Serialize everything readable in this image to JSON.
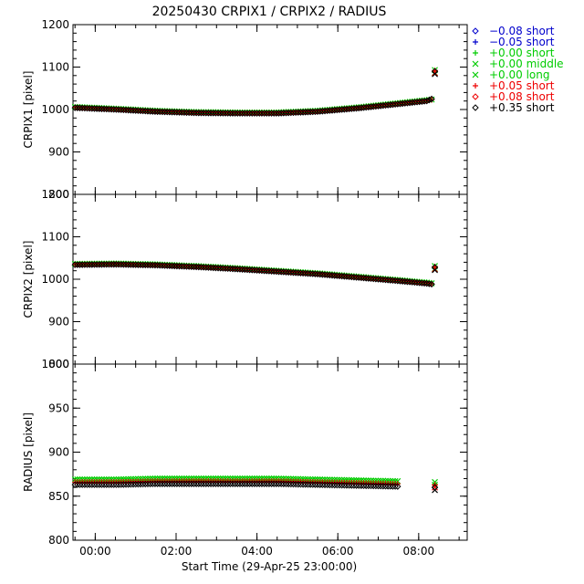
{
  "chart_data": {
    "type": "scatter",
    "title": "20250430 CRPIX1 / CRPIX2 / RADIUS",
    "xlabel": "Start Time (29-Apr-25 23:00:00)",
    "x_unit": "hours after 29-Apr-25 23:00:00",
    "xlim": [
      0.45,
      10.2
    ],
    "x_ticks": [
      1,
      3,
      5,
      7,
      9
    ],
    "x_tick_labels": [
      "00:00",
      "02:00",
      "04:00",
      "06:00",
      "08:00"
    ],
    "legend": {
      "placement": "outside-top-right",
      "entries": [
        {
          "symbol": "diamond",
          "label": "−0.08 short",
          "color": "#0000cc"
        },
        {
          "symbol": "plus",
          "label": "−0.05 short",
          "color": "#0000cc"
        },
        {
          "symbol": "plus",
          "label": "+0.00 short",
          "color": "#00cc00"
        },
        {
          "symbol": "cross",
          "label": "+0.00 middle",
          "color": "#00cc00"
        },
        {
          "symbol": "cross",
          "label": "+0.00 long",
          "color": "#00cc00"
        },
        {
          "symbol": "plus",
          "label": "+0.05 short",
          "color": "#ee0000"
        },
        {
          "symbol": "diamond",
          "label": "+0.08 short",
          "color": "#ee0000"
        },
        {
          "symbol": "diamond",
          "label": "+0.35 short",
          "color": "#000000"
        }
      ]
    },
    "panels": [
      {
        "ylabel": "CRPIX1 [pixel]",
        "ylim": [
          800,
          1200
        ],
        "y_ticks": [
          800,
          900,
          1000,
          1100,
          1200
        ],
        "x": [
          0.5,
          1.5,
          2.5,
          3.5,
          4.5,
          5.5,
          6.5,
          7.5,
          8.5,
          9.2,
          9.35,
          9.4
        ],
        "series": [
          {
            "color": "#00cc00",
            "values": [
              1006,
              1002,
              997,
              994,
              993,
              993,
              997,
              1005,
              1015,
              1022,
              1024,
              1093
            ]
          },
          {
            "color": "#ee0000",
            "values": [
              1005,
              1001,
              996,
              993,
              992,
              992,
              996,
              1004,
              1014,
              1021,
              1023,
              1092
            ]
          },
          {
            "color": "#000000",
            "values": [
              1004,
              1000,
              995,
              992,
              991,
              991,
              995,
              1003,
              1013,
              1020,
              1026,
              1090
            ]
          }
        ]
      },
      {
        "ylabel": "CRPIX2 [pixel]",
        "ylim": [
          800,
          1200
        ],
        "y_ticks": [
          800,
          900,
          1000,
          1100,
          1200
        ],
        "x": [
          0.5,
          1.5,
          2.5,
          3.5,
          4.5,
          5.5,
          6.5,
          7.5,
          8.5,
          9.2,
          9.35,
          9.4
        ],
        "series": [
          {
            "color": "#00cc00",
            "values": [
              1036,
              1037,
              1035,
              1031,
              1026,
              1020,
              1014,
              1006,
              998,
              992,
              990,
              1031
            ]
          },
          {
            "color": "#ee0000",
            "values": [
              1035,
              1036,
              1034,
              1030,
              1025,
              1019,
              1013,
              1005,
              997,
              991,
              989,
              1030
            ]
          },
          {
            "color": "#000000",
            "values": [
              1034,
              1035,
              1033,
              1029,
              1024,
              1018,
              1012,
              1004,
              996,
              990,
              988,
              1028
            ]
          }
        ]
      },
      {
        "ylabel": "RADIUS [pixel]",
        "ylim": [
          800,
          1000
        ],
        "y_ticks": [
          800,
          850,
          900,
          950,
          1000
        ],
        "x": [
          0.5,
          1.5,
          2.5,
          3.5,
          4.5,
          5.5,
          6.5,
          7.5,
          8.5,
          9.4
        ],
        "series": [
          {
            "color": "#00cc00",
            "values": [
              869,
              869,
              870,
              870,
              870,
              870,
              869,
              868,
              867,
              866
            ]
          },
          {
            "color": "#ee0000",
            "values": [
              866,
              866,
              867,
              867,
              867,
              867,
              866,
              865,
              864,
              863
            ]
          },
          {
            "color": "#000000",
            "values": [
              863,
              863,
              864,
              864,
              864,
              864,
              863,
              862,
              861,
              860
            ]
          }
        ]
      }
    ]
  }
}
